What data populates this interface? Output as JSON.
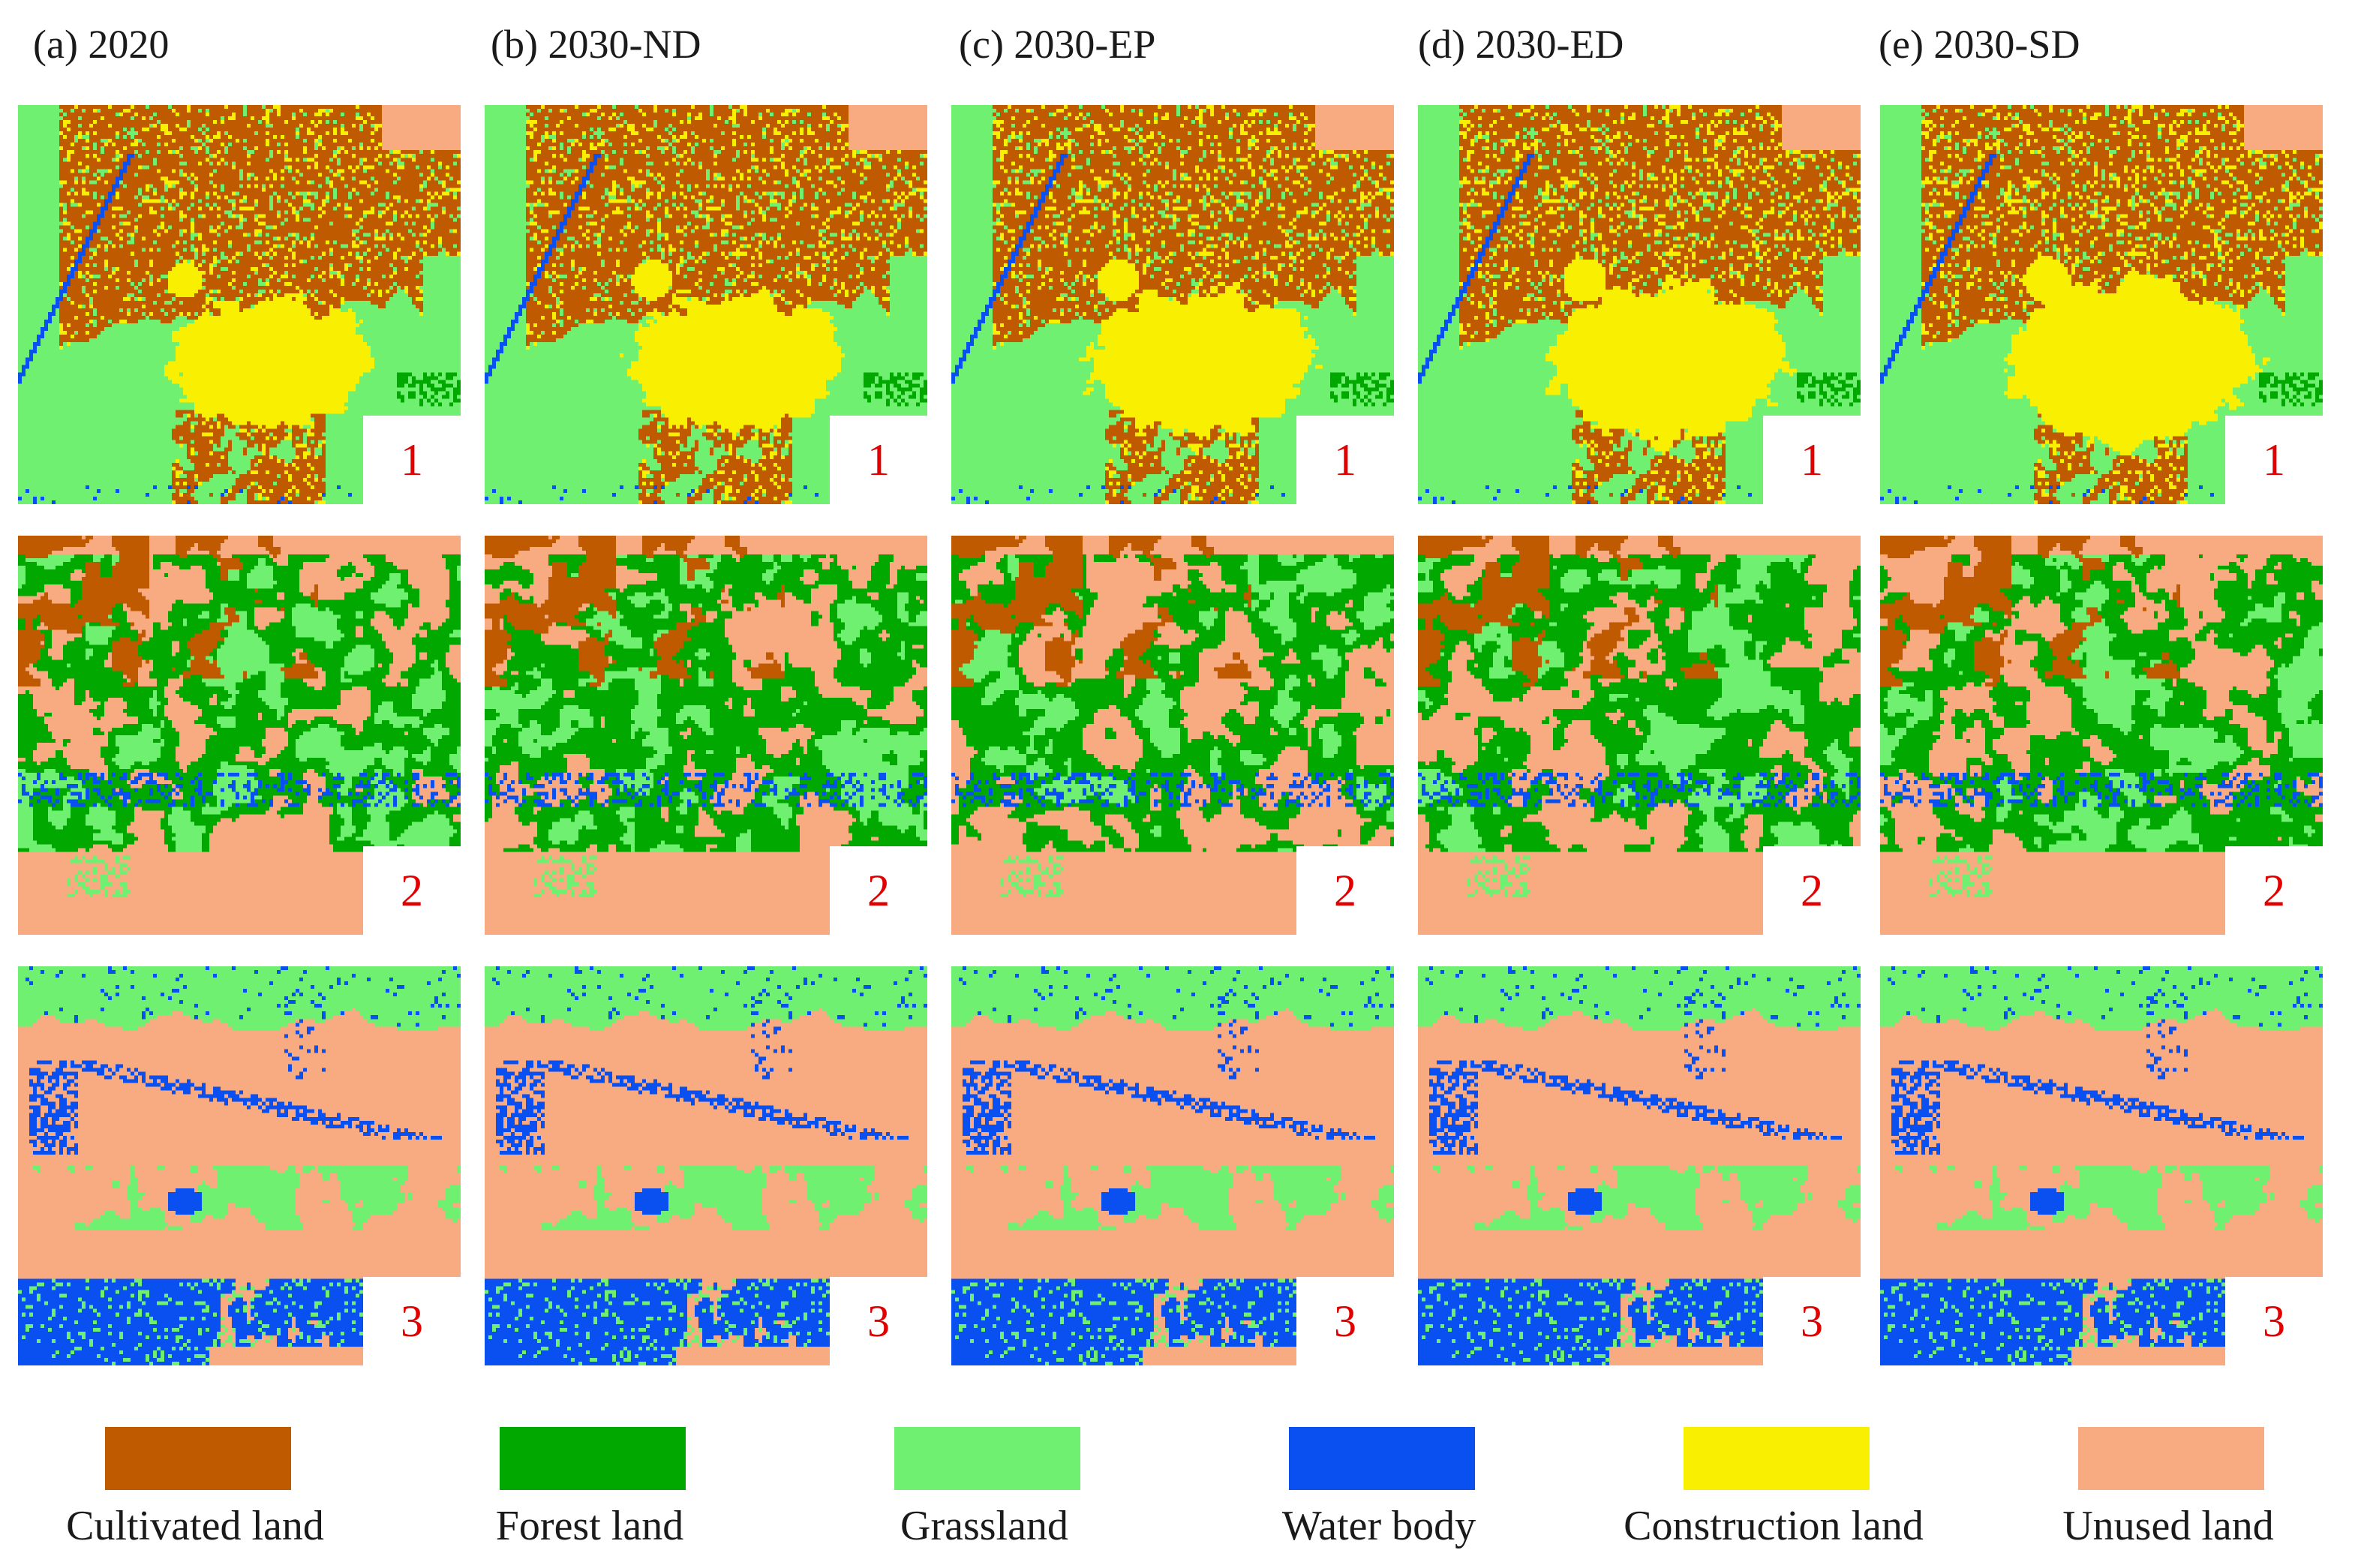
{
  "figure": {
    "columns": [
      {
        "title": "(a) 2020"
      },
      {
        "title": "(b) 2030-ND"
      },
      {
        "title": "(c) 2030-EP"
      },
      {
        "title": "(d) 2030-ED"
      },
      {
        "title": "(e) 2030-SD"
      }
    ],
    "rows": [
      {
        "label": "1"
      },
      {
        "label": "2"
      },
      {
        "label": "3"
      }
    ]
  },
  "legend": {
    "items": [
      {
        "label": "Cultivated land",
        "color": "#c05a00"
      },
      {
        "label": "Forest land",
        "color": "#00a800"
      },
      {
        "label": "Grassland",
        "color": "#70f070"
      },
      {
        "label": "Water body",
        "color": "#0a50f0"
      },
      {
        "label": "Construction land",
        "color": "#f8f000"
      },
      {
        "label": "Unused land",
        "color": "#f8aa80"
      }
    ]
  }
}
